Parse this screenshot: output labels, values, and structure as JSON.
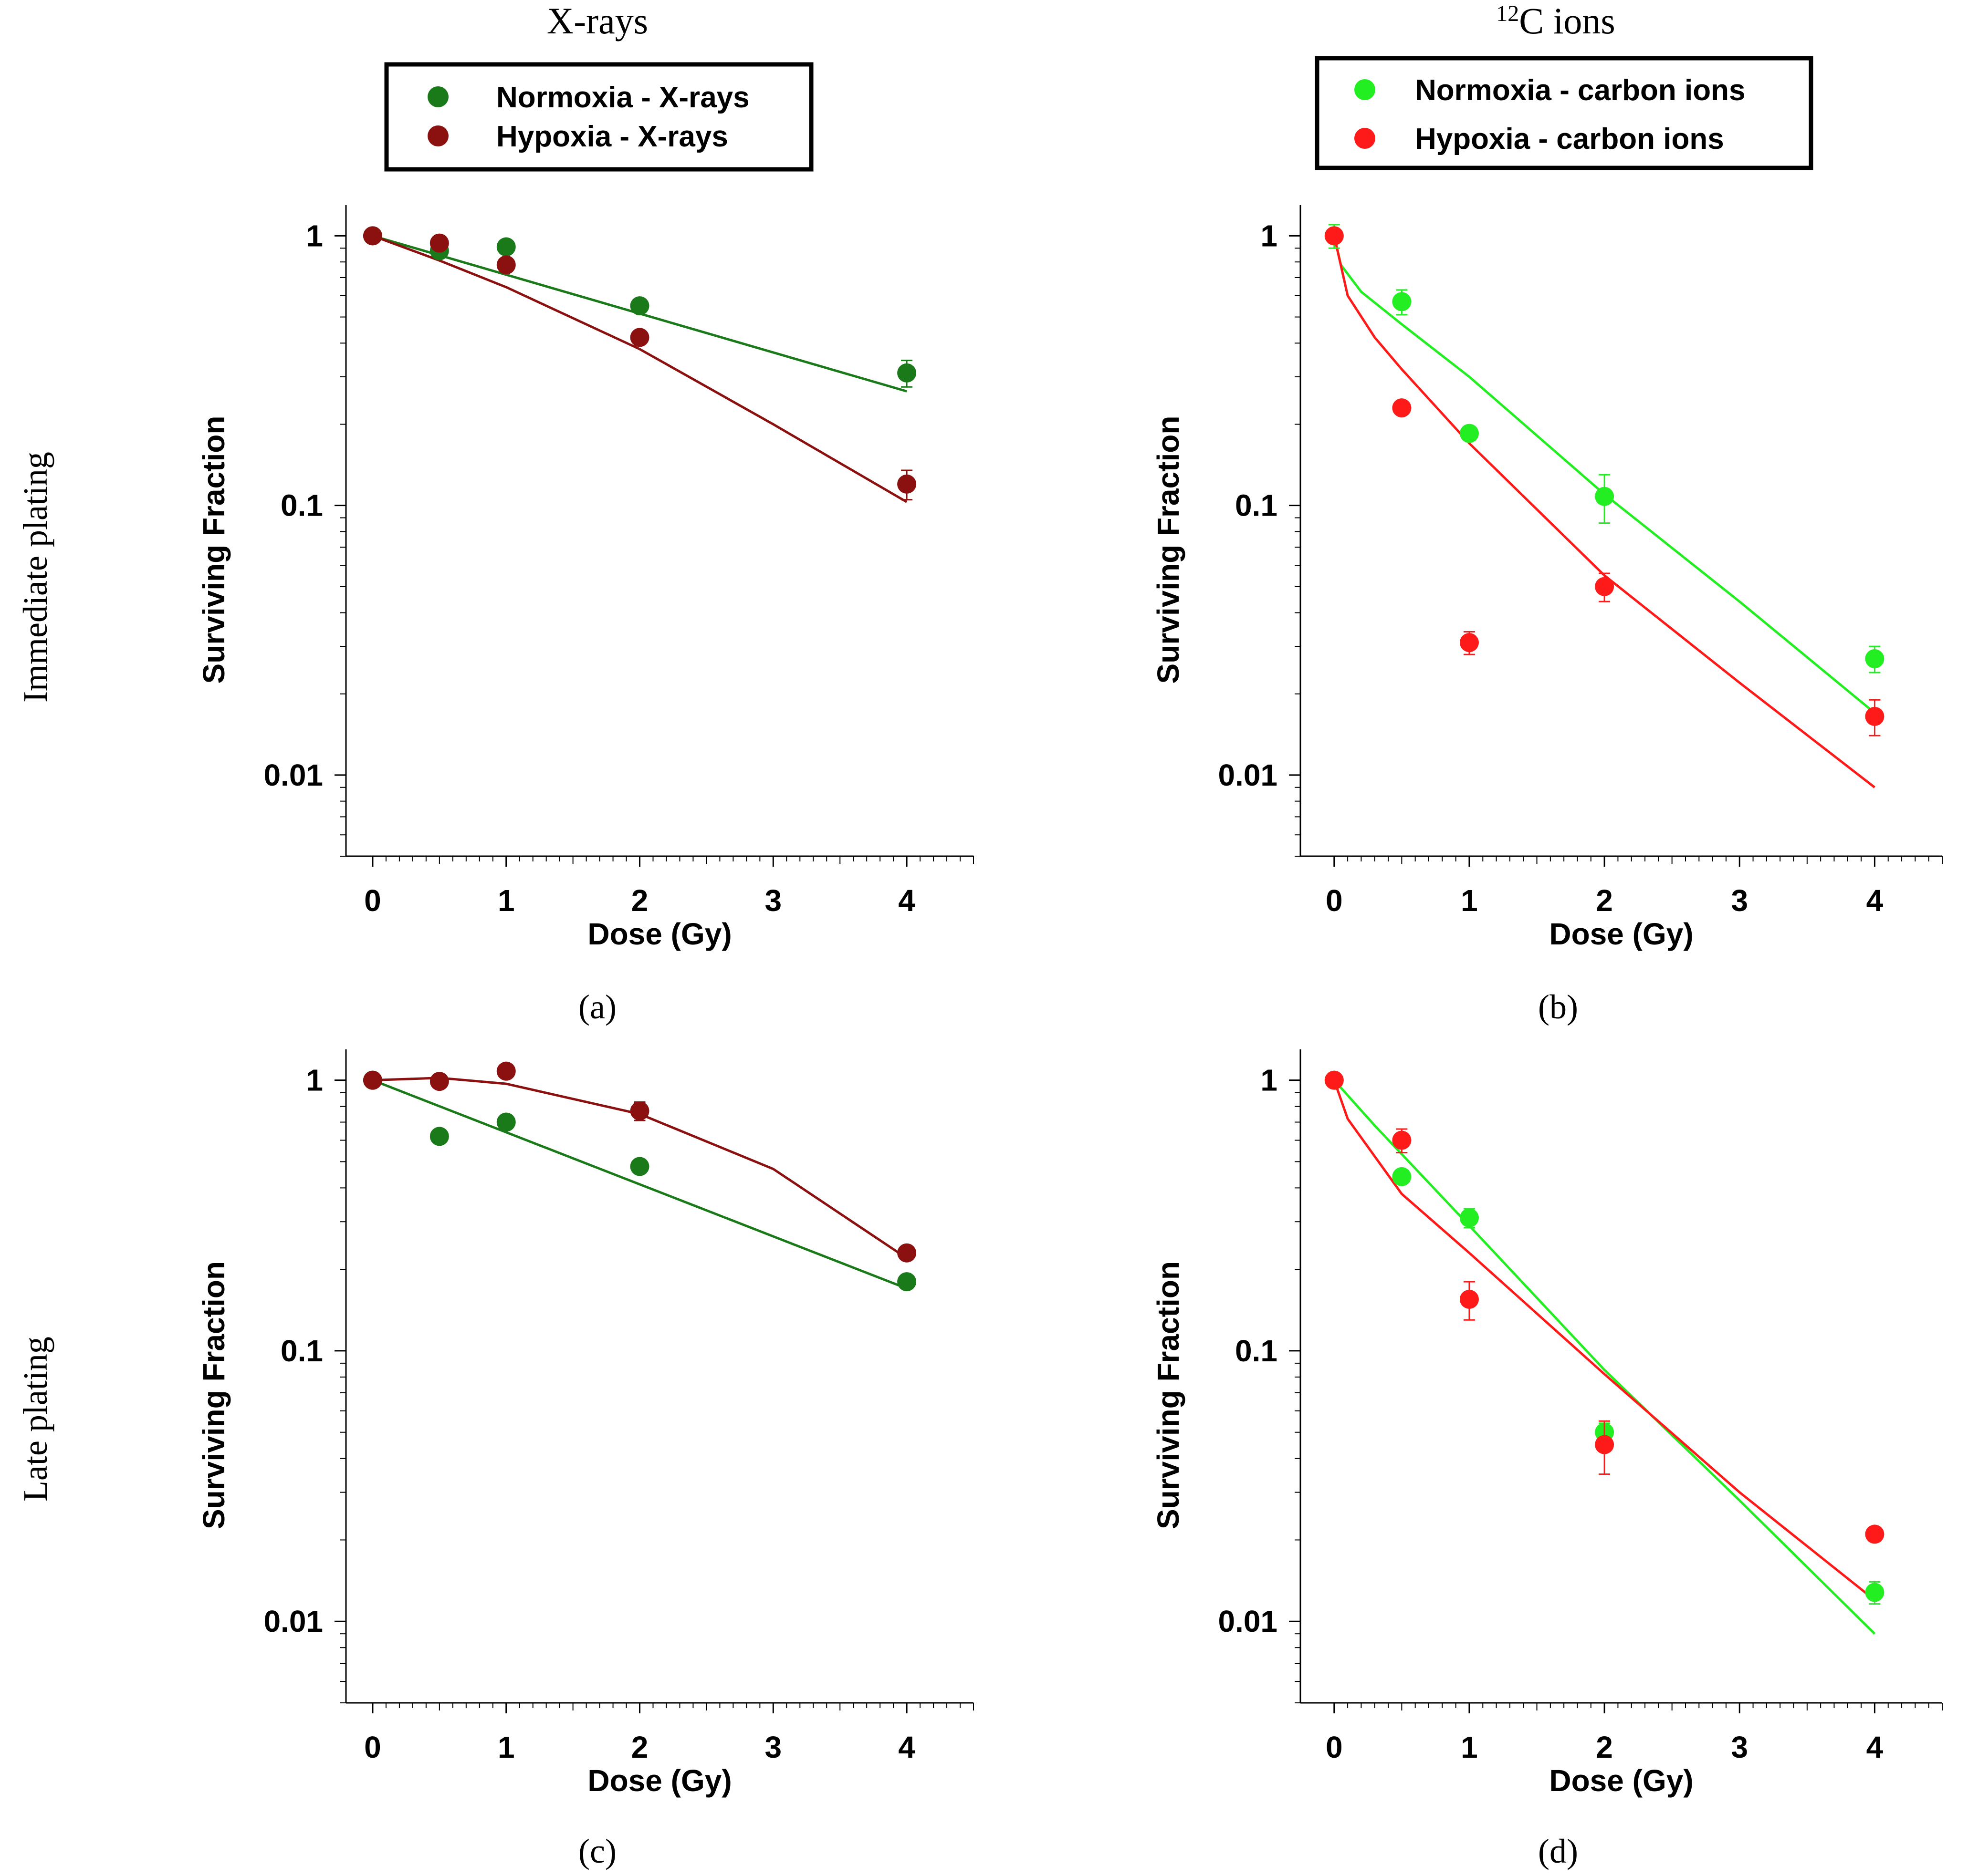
{
  "column_titles": {
    "xrays": "X-rays",
    "carbon_sup": "12",
    "carbon": "C ions"
  },
  "row_labels": {
    "immediate": "Immediate plating",
    "late": "Late plating"
  },
  "legends": {
    "xrays": [
      {
        "label": "Normoxia - X-rays",
        "color": "#1a7a1a"
      },
      {
        "label": "Hypoxia - X-rays",
        "color": "#8b1010"
      }
    ],
    "carbon": [
      {
        "label": "Normoxia - carbon ions",
        "color": "#22ee22"
      },
      {
        "label": "Hypoxia - carbon ions",
        "color": "#ff1a1a"
      }
    ]
  },
  "chart_data": [
    {
      "id": "a",
      "caption": "(a)",
      "type": "scatter",
      "xlabel": "Dose (Gy)",
      "ylabel": "Surviving Fraction",
      "yscale": "log",
      "xlim": [
        -0.2,
        4.5
      ],
      "ylim": [
        0.005,
        1.3
      ],
      "xticks": [
        "0",
        "1",
        "2",
        "3",
        "4"
      ],
      "yticks": [
        "1",
        "0.1",
        "0.01"
      ],
      "series": [
        {
          "name": "Normoxia - X-rays",
          "color": "#1a7a1a",
          "points": [
            [
              0,
              1.0
            ],
            [
              0.5,
              0.88
            ],
            [
              1,
              0.91
            ],
            [
              2,
              0.55
            ],
            [
              4,
              0.31
            ]
          ],
          "errors": [
            0,
            0,
            0,
            0,
            0.035
          ],
          "fit": [
            [
              0,
              1.0
            ],
            [
              4,
              0.265
            ]
          ]
        },
        {
          "name": "Hypoxia - X-rays",
          "color": "#8b1010",
          "points": [
            [
              0,
              1.0
            ],
            [
              0.5,
              0.94
            ],
            [
              1,
              0.78
            ],
            [
              2,
              0.42
            ],
            [
              4,
              0.12
            ]
          ],
          "errors": [
            0,
            0,
            0,
            0,
            0.015
          ],
          "fit": [
            [
              0,
              1.0
            ],
            [
              0.5,
              0.81
            ],
            [
              1,
              0.645
            ],
            [
              2,
              0.38
            ],
            [
              3,
              0.2
            ],
            [
              4,
              0.103
            ]
          ]
        }
      ]
    },
    {
      "id": "b",
      "caption": "(b)",
      "type": "scatter",
      "xlabel": "Dose (Gy)",
      "ylabel": "Surviving Fraction",
      "yscale": "log",
      "xlim": [
        -0.25,
        4.5
      ],
      "ylim": [
        0.005,
        1.3
      ],
      "xticks": [
        "0",
        "1",
        "2",
        "3",
        "4"
      ],
      "yticks": [
        "1",
        "0.1",
        "0.01"
      ],
      "series": [
        {
          "name": "Normoxia - carbon ions",
          "color": "#22ee22",
          "points": [
            [
              0,
              1.0
            ],
            [
              0.5,
              0.57
            ],
            [
              1,
              0.185
            ],
            [
              2,
              0.108
            ],
            [
              4,
              0.027
            ]
          ],
          "errors": [
            0.1,
            0.06,
            0,
            0.022,
            0.003
          ],
          "fit": [
            [
              0,
              1.0
            ],
            [
              0.05,
              0.78
            ],
            [
              0.2,
              0.62
            ],
            [
              0.5,
              0.47
            ],
            [
              1,
              0.3
            ],
            [
              2,
              0.11
            ],
            [
              3,
              0.044
            ],
            [
              4,
              0.017
            ]
          ]
        },
        {
          "name": "Hypoxia - carbon ions",
          "color": "#ff1a1a",
          "points": [
            [
              0,
              1.0
            ],
            [
              0.5,
              0.23
            ],
            [
              1,
              0.031
            ],
            [
              2,
              0.05
            ],
            [
              4,
              0.0165
            ]
          ],
          "errors": [
            0,
            0,
            0.003,
            0.006,
            0.0025
          ],
          "fit": [
            [
              0,
              1.0
            ],
            [
              0.1,
              0.6
            ],
            [
              0.3,
              0.42
            ],
            [
              0.5,
              0.32
            ],
            [
              1,
              0.17
            ],
            [
              2,
              0.055
            ],
            [
              3,
              0.022
            ],
            [
              4,
              0.009
            ]
          ]
        }
      ]
    },
    {
      "id": "c",
      "caption": "(c)",
      "type": "scatter",
      "xlabel": "Dose (Gy)",
      "ylabel": "Surviving Fraction",
      "yscale": "log",
      "xlim": [
        -0.2,
        4.5
      ],
      "ylim": [
        0.005,
        1.3
      ],
      "xticks": [
        "0",
        "1",
        "2",
        "3",
        "4"
      ],
      "yticks": [
        "1",
        "0.1",
        "0.01"
      ],
      "series": [
        {
          "name": "Normoxia - X-rays",
          "color": "#1a7a1a",
          "points": [
            [
              0,
              1.0
            ],
            [
              0.5,
              0.62
            ],
            [
              1,
              0.7
            ],
            [
              2,
              0.48
            ],
            [
              4,
              0.18
            ]
          ],
          "errors": [
            0,
            0,
            0,
            0,
            0
          ],
          "fit": [
            [
              0,
              1.0
            ],
            [
              4,
              0.17
            ]
          ]
        },
        {
          "name": "Hypoxia - X-rays",
          "color": "#8b1010",
          "points": [
            [
              0,
              1.0
            ],
            [
              0.5,
              0.99
            ],
            [
              1,
              1.08
            ],
            [
              2,
              0.77
            ],
            [
              4,
              0.23
            ]
          ],
          "errors": [
            0,
            0,
            0,
            0.06,
            0
          ],
          "fit": [
            [
              0,
              1.0
            ],
            [
              0.5,
              1.02
            ],
            [
              1,
              0.97
            ],
            [
              2,
              0.75
            ],
            [
              3,
              0.47
            ],
            [
              4,
              0.22
            ]
          ]
        }
      ]
    },
    {
      "id": "d",
      "caption": "(d)",
      "type": "scatter",
      "xlabel": "Dose (Gy)",
      "ylabel": "Surviving Fraction",
      "yscale": "log",
      "xlim": [
        -0.25,
        4.5
      ],
      "ylim": [
        0.005,
        1.3
      ],
      "xticks": [
        "0",
        "1",
        "2",
        "3",
        "4"
      ],
      "yticks": [
        "1",
        "0.1",
        "0.01"
      ],
      "series": [
        {
          "name": "Normoxia - carbon ions",
          "color": "#22ee22",
          "points": [
            [
              0,
              1.0
            ],
            [
              0.5,
              0.44
            ],
            [
              1,
              0.31
            ],
            [
              2,
              0.05
            ],
            [
              4,
              0.0128
            ]
          ],
          "errors": [
            0,
            0,
            0.025,
            0.004,
            0.0012
          ],
          "fit": [
            [
              0,
              1.0
            ],
            [
              0.3,
              0.68
            ],
            [
              1,
              0.29
            ],
            [
              2,
              0.085
            ],
            [
              3,
              0.028
            ],
            [
              4,
              0.009
            ]
          ]
        },
        {
          "name": "Hypoxia - carbon ions",
          "color": "#ff1a1a",
          "points": [
            [
              0,
              1.0
            ],
            [
              0.5,
              0.6
            ],
            [
              1,
              0.155
            ],
            [
              2,
              0.045
            ],
            [
              4,
              0.021
            ]
          ],
          "errors": [
            0,
            0.06,
            0.025,
            0.01,
            0
          ],
          "fit": [
            [
              0,
              1.0
            ],
            [
              0.1,
              0.72
            ],
            [
              0.5,
              0.38
            ],
            [
              1,
              0.23
            ],
            [
              2,
              0.082
            ],
            [
              3,
              0.03
            ],
            [
              4,
              0.012
            ]
          ]
        }
      ]
    }
  ]
}
